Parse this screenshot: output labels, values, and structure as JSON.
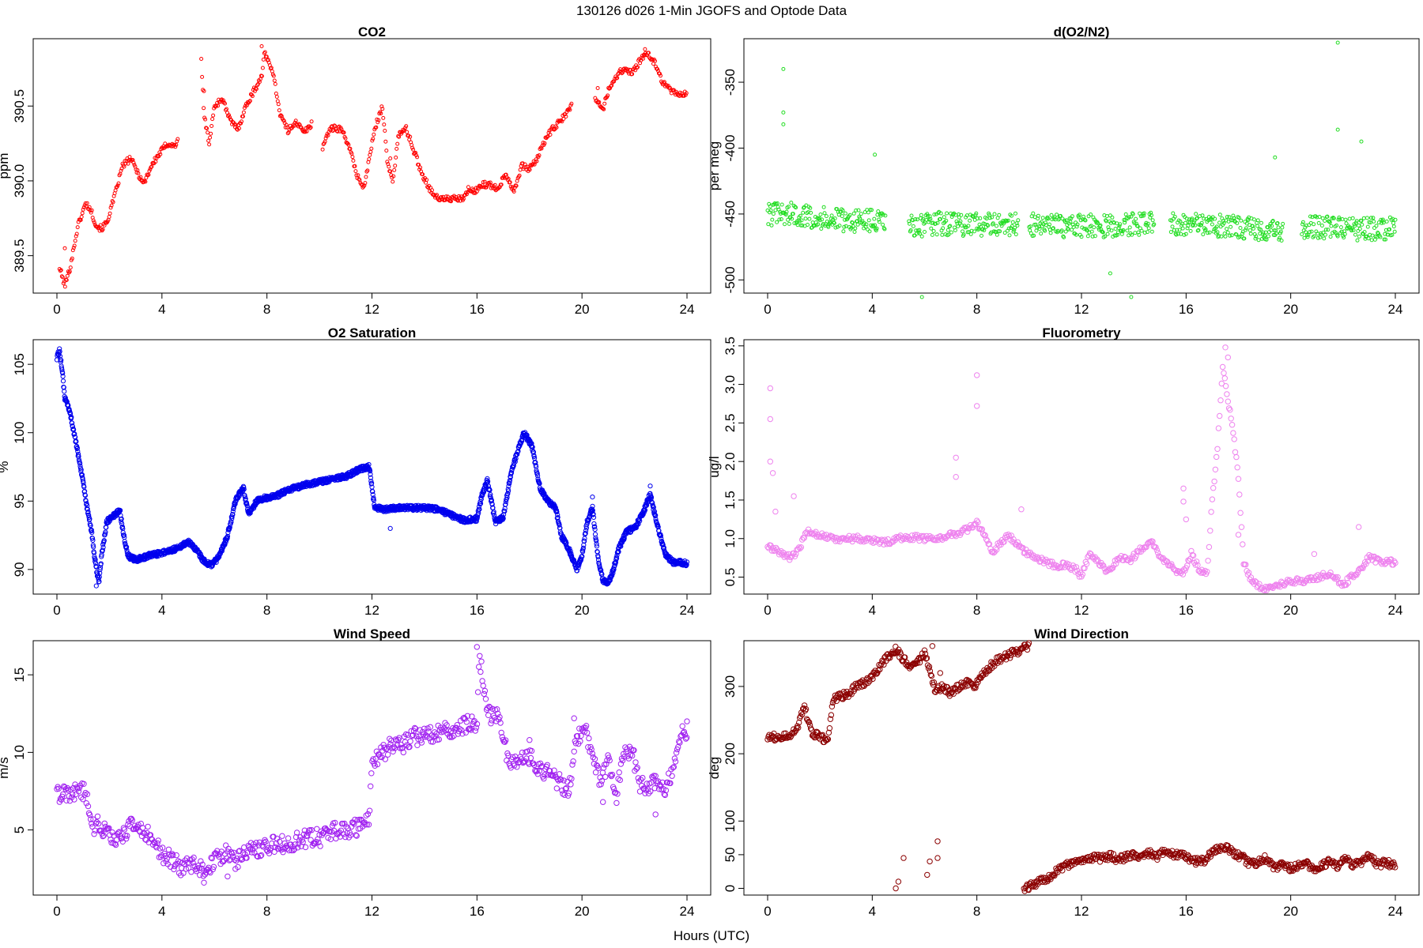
{
  "figure": {
    "title": "130126   d026   1-Min  JGOFS and Optode Data",
    "xlabel": "Hours (UTC)"
  },
  "chart_data": [
    {
      "type": "scatter",
      "title": "CO2",
      "ylabel": "ppm",
      "color": "#ff0000",
      "marker_size": "small",
      "xlim": [
        0,
        24
      ],
      "ylim": [
        389.25,
        390.95
      ],
      "xticks": [
        0,
        4,
        8,
        12,
        16,
        20,
        24
      ],
      "yticks": [
        389.5,
        390.0,
        390.5
      ],
      "ytick_labels": [
        "389.5",
        "390.0",
        "390.5"
      ],
      "gaps": [
        [
          4.6,
          5.5
        ],
        [
          9.7,
          10.1
        ],
        [
          19.6,
          20.5
        ]
      ],
      "x": [
        0.1,
        0.3,
        0.5,
        0.8,
        1.1,
        1.3,
        1.5,
        1.7,
        1.9,
        2.2,
        2.5,
        2.8,
        3.1,
        3.3,
        3.6,
        3.9,
        4.2,
        4.5,
        5.5,
        5.6,
        5.8,
        6.0,
        6.3,
        6.6,
        6.9,
        7.2,
        7.5,
        7.8,
        7.9,
        8.2,
        8.5,
        8.8,
        9.1,
        9.4,
        9.7,
        10.1,
        10.4,
        10.8,
        11.1,
        11.4,
        11.7,
        12.0,
        12.2,
        12.4,
        12.6,
        12.8,
        13.0,
        13.3,
        13.6,
        13.9,
        14.2,
        14.5,
        15.5,
        15.7,
        15.9,
        16.2,
        16.5,
        16.8,
        17.1,
        17.4,
        17.7,
        18.0,
        18.3,
        18.6,
        18.9,
        19.2,
        19.6,
        20.5,
        20.8,
        21.0,
        21.3,
        21.6,
        21.9,
        22.2,
        22.5,
        22.8,
        23.1,
        23.4,
        23.7,
        24.0
      ],
      "y": [
        389.42,
        389.3,
        389.42,
        389.7,
        389.85,
        389.8,
        389.7,
        389.68,
        389.72,
        389.9,
        390.1,
        390.15,
        390.05,
        389.98,
        390.1,
        390.18,
        390.25,
        390.23,
        390.8,
        390.45,
        390.25,
        390.5,
        390.55,
        390.4,
        390.35,
        390.5,
        390.6,
        390.7,
        390.85,
        390.75,
        390.45,
        390.33,
        390.4,
        390.32,
        390.38,
        390.22,
        390.35,
        390.35,
        390.25,
        390.05,
        389.95,
        390.25,
        390.4,
        390.5,
        390.1,
        390.0,
        390.3,
        390.35,
        390.2,
        390.05,
        389.95,
        389.88,
        389.88,
        389.95,
        389.92,
        389.98,
        389.97,
        389.95,
        390.05,
        389.93,
        390.1,
        390.08,
        390.15,
        390.28,
        390.35,
        390.4,
        390.5,
        390.55,
        390.48,
        390.6,
        390.7,
        390.75,
        390.72,
        390.8,
        390.85,
        390.78,
        390.65,
        390.6,
        390.58,
        390.58
      ],
      "scatter_points": [
        [
          0.3,
          389.55
        ],
        [
          5.6,
          390.6
        ],
        [
          7.8,
          390.9
        ],
        [
          12.7,
          390.15
        ],
        [
          20.6,
          390.62
        ],
        [
          22.4,
          390.88
        ]
      ]
    },
    {
      "type": "scatter",
      "title": "d(O2/N2)",
      "ylabel": "per meg",
      "color": "#22dd22",
      "marker_size": "small",
      "xlim": [
        0,
        24
      ],
      "ylim": [
        -510,
        -317
      ],
      "xticks": [
        0,
        4,
        8,
        12,
        16,
        20,
        24
      ],
      "yticks": [
        -500,
        -450,
        -400,
        -350
      ],
      "ytick_labels": [
        "-500",
        "-450",
        "-400",
        "-350"
      ],
      "gaps": [
        [
          4.5,
          5.4
        ],
        [
          9.6,
          10.0
        ],
        [
          14.8,
          15.4
        ],
        [
          19.7,
          20.4
        ]
      ],
      "x": [
        0,
        1,
        2,
        3,
        4,
        5.6,
        6.5,
        7.5,
        8.5,
        9.5,
        10.2,
        11.0,
        12.0,
        13.0,
        14.0,
        14.7,
        15.5,
        16.5,
        17.5,
        18.5,
        19.5,
        20.5,
        21.5,
        22.5,
        23.5,
        24.0
      ],
      "y": [
        -450,
        -450,
        -453,
        -455,
        -455,
        -460,
        -457,
        -458,
        -458,
        -458,
        -458,
        -459,
        -459,
        -459,
        -458,
        -456,
        -457,
        -458,
        -459,
        -461,
        -462,
        -460,
        -460,
        -462,
        -461,
        -461
      ],
      "scatter_points": [
        [
          0.6,
          -340
        ],
        [
          0.6,
          -373
        ],
        [
          0.6,
          -382
        ],
        [
          4.1,
          -405
        ],
        [
          5.9,
          -513
        ],
        [
          13.1,
          -495
        ],
        [
          13.9,
          -513
        ],
        [
          21.8,
          -320
        ],
        [
          21.8,
          -386
        ],
        [
          22.7,
          -395
        ],
        [
          19.4,
          -407
        ]
      ]
    },
    {
      "type": "scatter",
      "title": "O2 Saturation",
      "ylabel": "%",
      "color": "#0000ee",
      "marker_size": "medium",
      "xlim": [
        0,
        24
      ],
      "ylim": [
        88.2,
        106.8
      ],
      "xticks": [
        0,
        4,
        8,
        12,
        16,
        20,
        24
      ],
      "yticks": [
        90,
        95,
        100,
        105
      ],
      "ytick_labels": [
        "90",
        "95",
        "100",
        "105"
      ],
      "gaps": [],
      "x": [
        0.0,
        0.1,
        0.2,
        0.3,
        0.5,
        0.7,
        0.9,
        1.1,
        1.3,
        1.5,
        1.6,
        1.7,
        1.9,
        2.2,
        2.4,
        2.5,
        2.7,
        3.0,
        3.5,
        4.0,
        4.5,
        5.0,
        5.3,
        5.6,
        5.9,
        6.2,
        6.5,
        6.8,
        7.1,
        7.3,
        7.6,
        7.9,
        8.2,
        8.5,
        8.8,
        9.1,
        9.5,
        10.0,
        10.5,
        11.0,
        11.5,
        11.9,
        12.0,
        12.1,
        12.5,
        13.0,
        13.5,
        14.0,
        14.5,
        15.0,
        15.5,
        16.0,
        16.2,
        16.4,
        16.7,
        17.0,
        17.3,
        17.6,
        17.8,
        18.1,
        18.4,
        18.7,
        19.0,
        19.2,
        19.5,
        19.8,
        20.0,
        20.2,
        20.4,
        20.6,
        20.8,
        21.0,
        21.2,
        21.4,
        21.7,
        22.0,
        22.3,
        22.6,
        22.9,
        23.2,
        23.5,
        23.8,
        24.0
      ],
      "y": [
        105.5,
        106.0,
        104.5,
        102.5,
        101.5,
        99.5,
        97.5,
        95.0,
        93.0,
        90.0,
        89.0,
        91.0,
        93.5,
        94.0,
        94.3,
        93.0,
        91.0,
        90.7,
        91.0,
        91.2,
        91.5,
        92.0,
        91.5,
        90.6,
        90.3,
        91.0,
        92.5,
        95.0,
        96.0,
        94.0,
        95.0,
        95.2,
        95.3,
        95.5,
        95.8,
        96.0,
        96.2,
        96.4,
        96.6,
        96.8,
        97.3,
        97.5,
        96.0,
        94.5,
        94.4,
        94.5,
        94.5,
        94.5,
        94.4,
        94.0,
        93.6,
        93.7,
        95.5,
        96.5,
        93.5,
        93.8,
        97.0,
        99.0,
        100.0,
        99.0,
        96.0,
        95.0,
        94.5,
        92.5,
        91.5,
        90.0,
        91.0,
        93.5,
        94.5,
        91.0,
        89.2,
        89.0,
        90.0,
        91.5,
        92.8,
        93.0,
        94.0,
        95.5,
        93.0,
        91.0,
        90.5,
        90.5,
        90.4
      ],
      "scatter_points": [
        [
          1.5,
          88.8
        ],
        [
          20.4,
          95.3
        ],
        [
          22.6,
          96.1
        ],
        [
          12.7,
          93.0
        ]
      ]
    },
    {
      "type": "scatter",
      "title": "Fluorometry",
      "ylabel": "ug/l",
      "color": "#ee82ee",
      "marker_size": "large",
      "xlim": [
        0,
        24
      ],
      "ylim": [
        0.28,
        3.58
      ],
      "xticks": [
        0,
        4,
        8,
        12,
        16,
        20,
        24
      ],
      "yticks": [
        0.5,
        1.0,
        1.5,
        2.0,
        2.5,
        3.0,
        3.5
      ],
      "ytick_labels": [
        "0.5",
        "1.0",
        "1.5",
        "2.0",
        "2.5",
        "3.0",
        "3.5"
      ],
      "gaps": [],
      "x": [
        0.0,
        0.3,
        0.6,
        0.9,
        1.2,
        1.5,
        2.0,
        2.5,
        3.0,
        3.5,
        4.0,
        4.5,
        5.0,
        5.5,
        6.0,
        6.5,
        7.0,
        7.5,
        7.8,
        8.0,
        8.3,
        8.6,
        8.9,
        9.2,
        9.5,
        9.8,
        10.2,
        10.6,
        11.0,
        11.4,
        11.8,
        12.0,
        12.3,
        12.6,
        12.9,
        13.2,
        13.5,
        13.8,
        14.1,
        14.4,
        14.7,
        15.0,
        15.3,
        15.6,
        15.9,
        16.2,
        16.5,
        16.8,
        17.0,
        17.2,
        17.4,
        17.6,
        17.8,
        18.0,
        18.2,
        18.5,
        19.0,
        19.5,
        20.0,
        20.5,
        21.0,
        21.5,
        22.0,
        22.5,
        23.0,
        23.5,
        24.0
      ],
      "y": [
        0.9,
        0.85,
        0.8,
        0.75,
        0.85,
        1.1,
        1.05,
        1.0,
        1.0,
        1.0,
        0.98,
        0.95,
        1.0,
        1.02,
        1.0,
        1.0,
        1.05,
        1.1,
        1.15,
        1.2,
        1.05,
        0.8,
        0.95,
        1.05,
        0.95,
        0.85,
        0.75,
        0.7,
        0.65,
        0.65,
        0.6,
        0.5,
        0.8,
        0.7,
        0.6,
        0.65,
        0.75,
        0.7,
        0.8,
        0.9,
        0.95,
        0.75,
        0.7,
        0.55,
        0.55,
        0.8,
        0.6,
        0.55,
        1.5,
        2.2,
        3.2,
        2.8,
        2.4,
        1.8,
        0.7,
        0.45,
        0.35,
        0.4,
        0.45,
        0.45,
        0.5,
        0.55,
        0.4,
        0.55,
        0.75,
        0.7,
        0.7
      ],
      "scatter_points": [
        [
          0.1,
          2.95
        ],
        [
          0.1,
          2.55
        ],
        [
          0.1,
          2.0
        ],
        [
          0.2,
          1.85
        ],
        [
          0.3,
          1.35
        ],
        [
          1.0,
          1.55
        ],
        [
          7.2,
          2.05
        ],
        [
          7.2,
          1.8
        ],
        [
          8.0,
          3.12
        ],
        [
          8.0,
          2.72
        ],
        [
          9.7,
          1.38
        ],
        [
          15.9,
          1.65
        ],
        [
          15.9,
          1.48
        ],
        [
          16.0,
          1.25
        ],
        [
          17.5,
          3.48
        ],
        [
          17.6,
          3.35
        ],
        [
          18.0,
          1.05
        ],
        [
          20.9,
          0.8
        ],
        [
          22.6,
          1.15
        ]
      ]
    },
    {
      "type": "scatter",
      "title": "Wind Speed",
      "ylabel": "m/s",
      "color": "#a020f0",
      "marker_size": "large",
      "xlim": [
        0,
        24
      ],
      "ylim": [
        0.8,
        17.2
      ],
      "xticks": [
        0,
        4,
        8,
        12,
        16,
        20,
        24
      ],
      "yticks": [
        5,
        10,
        15
      ],
      "ytick_labels": [
        "5",
        "10",
        "15"
      ],
      "gaps": [],
      "x": [
        0.0,
        0.4,
        0.8,
        1.1,
        1.3,
        1.6,
        2.0,
        2.4,
        2.8,
        3.2,
        3.6,
        4.0,
        4.4,
        4.8,
        5.2,
        5.6,
        6.0,
        6.4,
        6.8,
        7.2,
        7.6,
        8.0,
        8.4,
        8.8,
        9.2,
        9.6,
        10.0,
        10.4,
        10.8,
        11.2,
        11.6,
        11.9,
        12.0,
        12.4,
        12.8,
        13.2,
        13.6,
        14.0,
        14.4,
        14.8,
        15.2,
        15.6,
        16.0,
        16.1,
        16.4,
        16.8,
        17.2,
        17.6,
        18.0,
        18.4,
        18.8,
        19.2,
        19.5,
        19.8,
        20.1,
        20.4,
        20.7,
        21.0,
        21.3,
        21.6,
        21.9,
        22.2,
        22.5,
        22.8,
        23.1,
        23.4,
        23.7,
        24.0
      ],
      "y": [
        7.3,
        7.3,
        7.5,
        7.5,
        5.0,
        5.5,
        4.5,
        4.5,
        5.2,
        5.0,
        4.5,
        3.5,
        3.0,
        2.5,
        2.8,
        2.4,
        3.0,
        3.5,
        3.0,
        3.5,
        3.8,
        4.0,
        4.0,
        4.2,
        4.3,
        4.5,
        4.5,
        4.8,
        5.0,
        5.0,
        5.3,
        5.5,
        9.5,
        10.0,
        10.5,
        10.5,
        11.0,
        11.0,
        11.2,
        11.5,
        11.5,
        11.8,
        12.0,
        16.2,
        12.5,
        12.2,
        9.5,
        9.5,
        9.8,
        9.0,
        8.5,
        8.0,
        7.5,
        11.0,
        11.5,
        10.0,
        8.0,
        9.5,
        7.0,
        10.0,
        10.2,
        7.8,
        7.8,
        8.0,
        7.5,
        8.5,
        11.0,
        11.3
      ],
      "scatter_points": [
        [
          5.6,
          1.6
        ],
        [
          6.5,
          2.0
        ],
        [
          16.0,
          16.8
        ],
        [
          18.0,
          10.8
        ],
        [
          19.7,
          12.2
        ],
        [
          20.8,
          6.8
        ],
        [
          22.8,
          6.0
        ],
        [
          24.0,
          12.0
        ]
      ]
    },
    {
      "type": "scatter",
      "title": "Wind Direction",
      "ylabel": "deg",
      "color": "#8b0000",
      "marker_size": "large",
      "xlim": [
        0,
        24
      ],
      "ylim": [
        -10,
        368
      ],
      "xticks": [
        0,
        4,
        8,
        12,
        16,
        20,
        24
      ],
      "yticks": [
        0,
        50,
        100,
        200,
        300
      ],
      "ytick_labels": [
        "0",
        "50",
        "100",
        "200",
        "300"
      ],
      "gaps": [],
      "x": [
        0.0,
        0.4,
        0.8,
        1.1,
        1.4,
        1.7,
        2.0,
        2.3,
        2.5,
        2.8,
        3.1,
        3.4,
        3.7,
        4.0,
        4.3,
        4.6,
        4.9,
        5.2,
        5.5,
        5.8,
        6.0,
        6.4,
        6.7,
        7.0,
        7.3,
        7.6,
        7.9,
        8.2,
        8.5,
        8.8,
        9.1,
        9.4,
        9.7,
        10.0
      ],
      "y": [
        225,
        225,
        228,
        235,
        270,
        230,
        225,
        220,
        280,
        285,
        290,
        300,
        305,
        315,
        330,
        345,
        355,
        340,
        330,
        340,
        350,
        295,
        300,
        290,
        300,
        305,
        300,
        315,
        330,
        340,
        345,
        350,
        355,
        360
      ],
      "x2": [
        9.8,
        10.1,
        10.4,
        10.7,
        11.0,
        11.3,
        11.6,
        11.9,
        12.2,
        12.5,
        12.8,
        13.1,
        13.4,
        13.7,
        14.0,
        14.3,
        14.6,
        14.9,
        15.2,
        15.5,
        15.8,
        16.1,
        16.4,
        16.7,
        17.0,
        17.3,
        17.6,
        17.9,
        18.2,
        18.5,
        18.8,
        19.1,
        19.4,
        19.7,
        20.0,
        20.3,
        20.6,
        20.9,
        21.2,
        21.5,
        21.8,
        22.1,
        22.4,
        22.7,
        23.0,
        23.3,
        23.6,
        24.0
      ],
      "y2": [
        0,
        5,
        10,
        15,
        25,
        32,
        37,
        40,
        42,
        45,
        45,
        48,
        42,
        47,
        50,
        45,
        52,
        48,
        55,
        50,
        52,
        45,
        40,
        42,
        55,
        58,
        60,
        50,
        45,
        35,
        40,
        45,
        30,
        35,
        30,
        35,
        40,
        25,
        35,
        40,
        30,
        45,
        35,
        40,
        50,
        35,
        38,
        35
      ],
      "scatter_points": [
        [
          4.9,
          0
        ],
        [
          5.0,
          10
        ],
        [
          5.2,
          45
        ],
        [
          6.1,
          20
        ],
        [
          6.2,
          40
        ],
        [
          6.5,
          45
        ],
        [
          6.5,
          70
        ],
        [
          6.3,
          360
        ],
        [
          6.6,
          320
        ]
      ]
    }
  ]
}
